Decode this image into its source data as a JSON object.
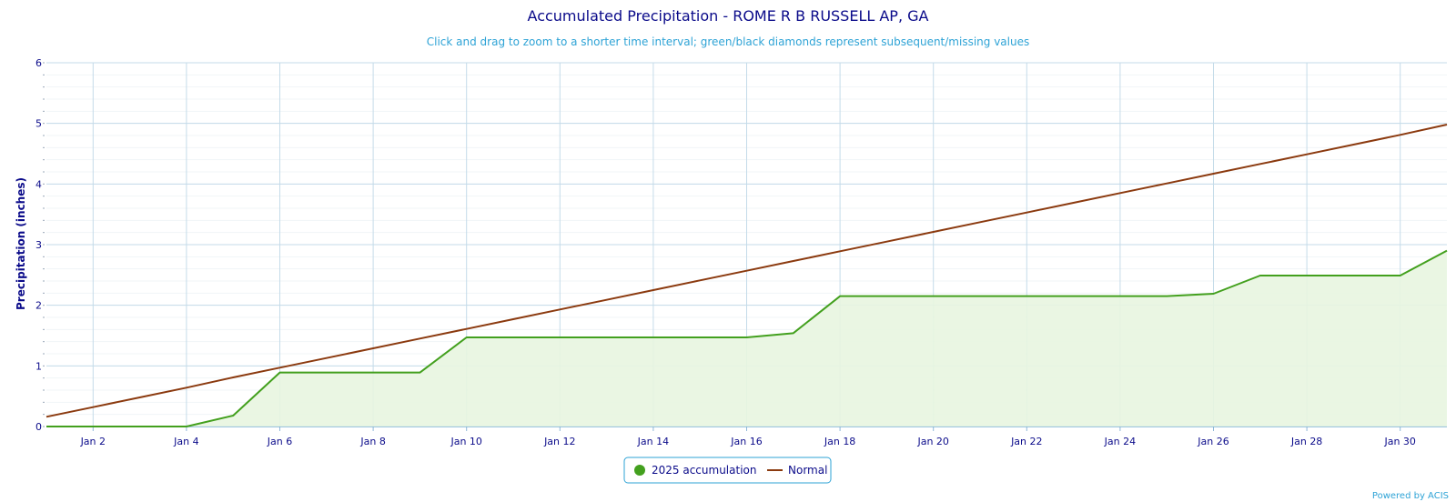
{
  "chart_data": {
    "type": "line",
    "title": "Accumulated Precipitation - ROME R B RUSSELL AP, GA",
    "subtitle": "Click and drag to zoom to a shorter time interval; green/black diamonds represent subsequent/missing values",
    "ylabel": "Precipitation (inches)",
    "xlabel": "",
    "ylim": [
      0,
      6
    ],
    "xlim": [
      "Jan 1",
      "Jan 31"
    ],
    "y_ticks": [
      "0",
      "1",
      "2",
      "3",
      "4",
      "5",
      "6"
    ],
    "x_ticks": [
      "Jan 2",
      "Jan 4",
      "Jan 6",
      "Jan 8",
      "Jan 10",
      "Jan 12",
      "Jan 14",
      "Jan 16",
      "Jan 18",
      "Jan 20",
      "Jan 22",
      "Jan 24",
      "Jan 26",
      "Jan 28",
      "Jan 30"
    ],
    "grid": true,
    "legend": "bottom-center",
    "x": [
      "Jan 1",
      "Jan 2",
      "Jan 3",
      "Jan 4",
      "Jan 5",
      "Jan 6",
      "Jan 7",
      "Jan 8",
      "Jan 9",
      "Jan 10",
      "Jan 11",
      "Jan 12",
      "Jan 13",
      "Jan 14",
      "Jan 15",
      "Jan 16",
      "Jan 17",
      "Jan 18",
      "Jan 19",
      "Jan 20",
      "Jan 21",
      "Jan 22",
      "Jan 23",
      "Jan 24",
      "Jan 25",
      "Jan 26",
      "Jan 27",
      "Jan 28",
      "Jan 29",
      "Jan 30",
      "Jan 31"
    ],
    "series": [
      {
        "name": "2025 accumulation",
        "color": "#43a01e",
        "fill": "#e8f5e0",
        "values": [
          0,
          0,
          0,
          0,
          0.18,
          0.89,
          0.89,
          0.89,
          0.89,
          1.47,
          1.47,
          1.47,
          1.47,
          1.47,
          1.47,
          1.47,
          1.54,
          2.15,
          2.15,
          2.15,
          2.15,
          2.15,
          2.15,
          2.15,
          2.15,
          2.19,
          2.49,
          2.49,
          2.49,
          2.49,
          2.9
        ]
      },
      {
        "name": "Normal",
        "color": "#8b3a0f",
        "values": [
          0.16,
          0.32,
          0.48,
          0.64,
          0.81,
          0.97,
          1.13,
          1.29,
          1.45,
          1.61,
          1.77,
          1.93,
          2.09,
          2.25,
          2.41,
          2.57,
          2.73,
          2.89,
          3.05,
          3.21,
          3.37,
          3.53,
          3.69,
          3.85,
          4.01,
          4.17,
          4.33,
          4.49,
          4.65,
          4.81,
          4.98
        ]
      }
    ]
  },
  "credit": "Powered by ACIS"
}
